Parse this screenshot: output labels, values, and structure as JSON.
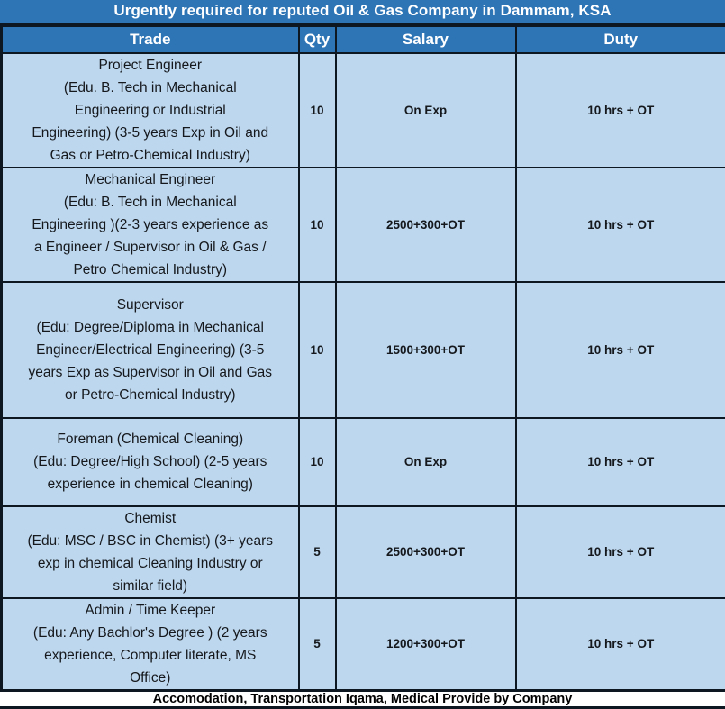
{
  "title": "Urgently required for reputed Oil & Gas Company in Dammam, KSA",
  "columns": [
    "Trade",
    "Qty",
    "Salary",
    "Duty"
  ],
  "rows": [
    {
      "trade": "Project Engineer\n(Edu. B. Tech in Mechanical\nEngineering or Industrial\nEngineering) (3-5 years Exp in Oil and\nGas or Petro-Chemical Industry)",
      "qty": "10",
      "salary": "On Exp",
      "duty": "10 hrs + OT"
    },
    {
      "trade": "Mechanical Engineer\n(Edu: B. Tech in Mechanical\nEngineering )(2-3 years experience as\na Engineer / Supervisor in Oil & Gas /\nPetro Chemical Industry)",
      "qty": "10",
      "salary": "2500+300+OT",
      "duty": "10 hrs + OT"
    },
    {
      "trade": "Supervisor\n(Edu: Degree/Diploma in Mechanical\nEngineer/Electrical Engineering) (3-5\nyears Exp as Supervisor in Oil and Gas\nor Petro-Chemical Industry)",
      "qty": "10",
      "salary": "1500+300+OT",
      "duty": "10 hrs + OT"
    },
    {
      "trade": "Foreman (Chemical Cleaning)\n(Edu: Degree/High School) (2-5 years\nexperience in chemical Cleaning)",
      "qty": "10",
      "salary": "On Exp",
      "duty": "10 hrs + OT"
    },
    {
      "trade": "Chemist\n(Edu: MSC / BSC in Chemist) (3+ years\nexp in chemical Cleaning Industry or\nsimilar field)",
      "qty": "5",
      "salary": "2500+300+OT",
      "duty": "10 hrs + OT"
    },
    {
      "trade": "Admin / Time Keeper\n(Edu: Any Bachlor's Degree ) (2 years\nexperience, Computer literate, MS\nOffice)",
      "qty": "5",
      "salary": "1200+300+OT",
      "duty": "10 hrs + OT"
    }
  ],
  "footer": "Accomodation, Transportation Iqama, Medical Provide by Company",
  "colors": {
    "header_blue": "#2E75B6",
    "cell_blue": "#BDD7EE",
    "border": "#0D1722",
    "title_text": "#FFFFFF",
    "body_text": "#15181C"
  }
}
